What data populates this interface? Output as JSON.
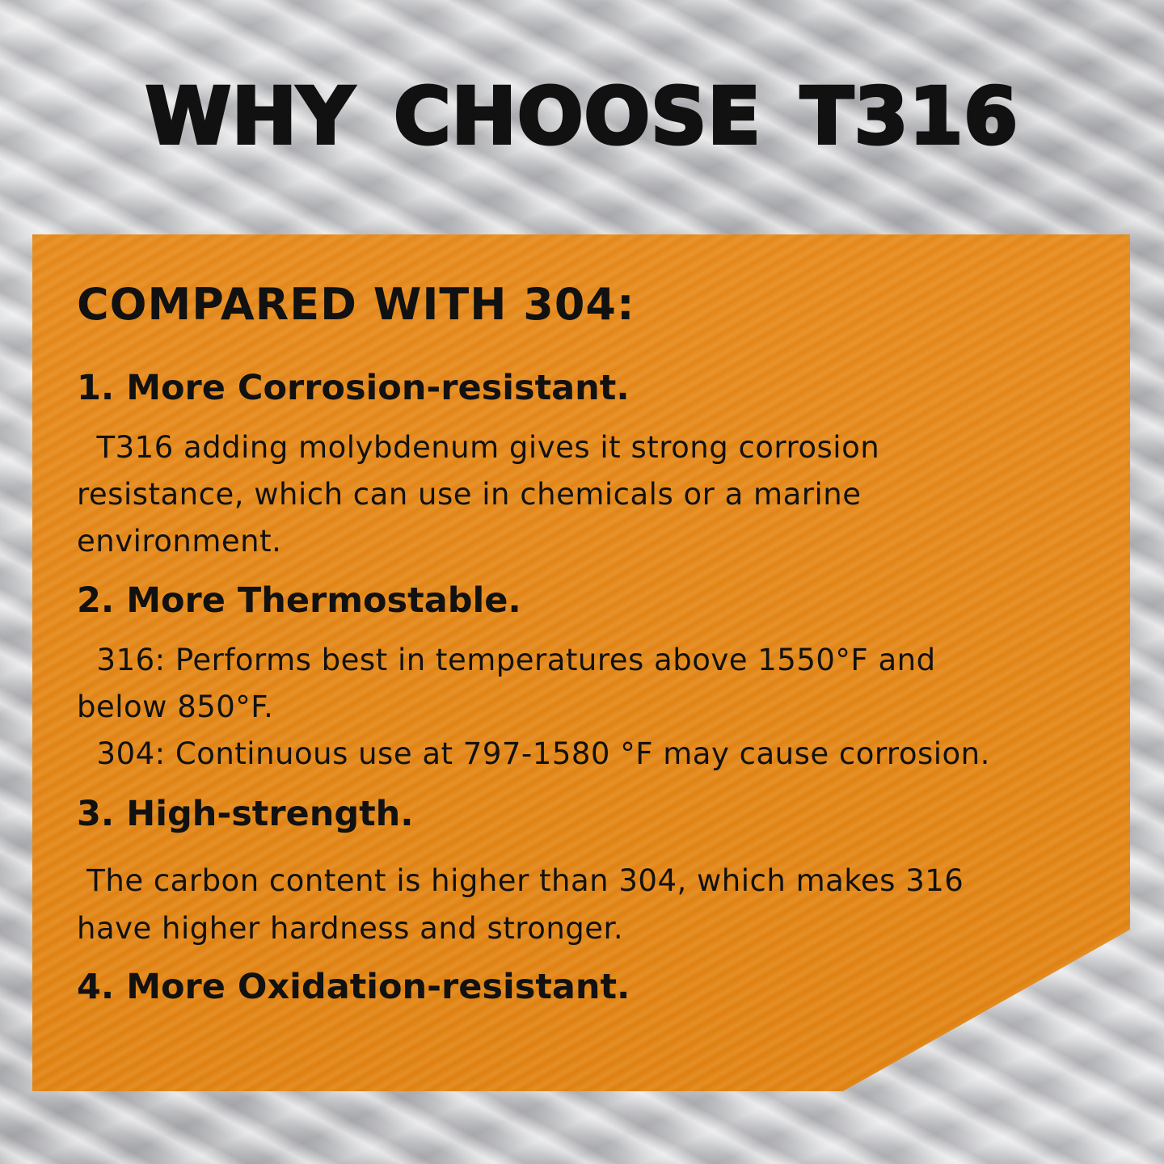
{
  "title": "WHY CHOOSE T316",
  "panel": {
    "heading": "COMPARED WITH 304:",
    "colors": {
      "panel": "#e4871a",
      "text": "#111111"
    },
    "items": [
      {
        "title": "1. More Corrosion-resistant.",
        "lines": [
          "  T316 adding molybdenum gives it strong corrosion",
          "resistance, which can use in chemicals or a marine",
          "environment."
        ]
      },
      {
        "title": "2. More Thermostable.",
        "lines": [
          "  316: Performs best in temperatures above 1550°F and",
          "below 850°F.",
          "  304: Continuous use at 797-1580 °F may cause corrosion."
        ]
      },
      {
        "title": "3. High-strength.",
        "lines": [
          " The carbon content is higher than 304, which makes 316",
          "have higher hardness and stronger."
        ]
      },
      {
        "title": "4. More Oxidation-resistant.",
        "lines": []
      }
    ]
  }
}
